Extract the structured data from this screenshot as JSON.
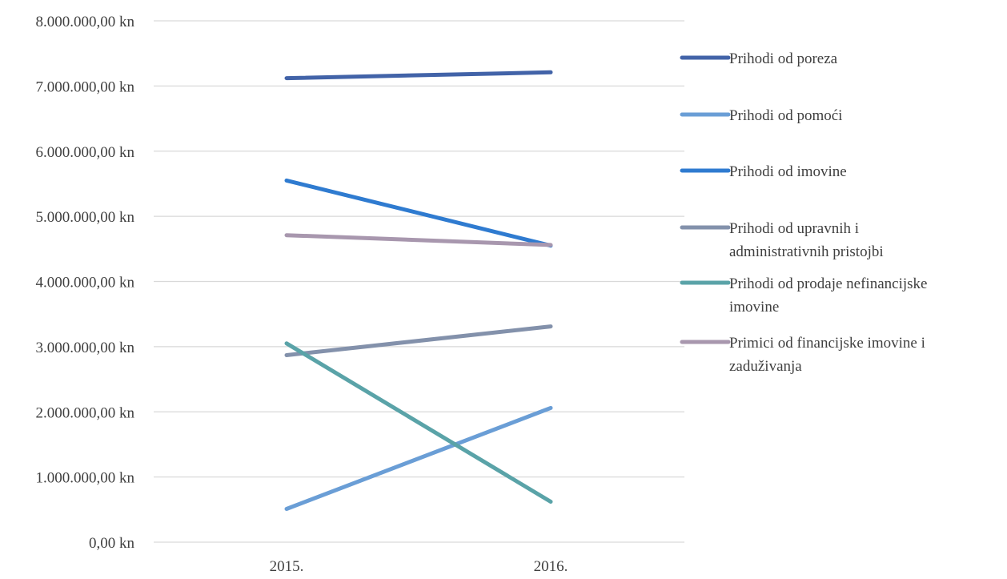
{
  "chart_data": {
    "type": "line",
    "title": "",
    "xlabel": "",
    "ylabel": "",
    "categories": [
      "2015.",
      "2016."
    ],
    "ylim": [
      0,
      8000000
    ],
    "y_ticks": [
      0,
      1000000,
      2000000,
      3000000,
      4000000,
      5000000,
      6000000,
      7000000,
      8000000
    ],
    "y_tick_labels": [
      "0,00 kn",
      "1.000.000,00 kn",
      "2.000.000,00 kn",
      "3.000.000,00 kn",
      "4.000.000,00 kn",
      "5.000.000,00 kn",
      "6.000.000,00 kn",
      "7.000.000,00 kn",
      "8.000.000,00 kn"
    ],
    "grid": true,
    "legend_position": "right",
    "series": [
      {
        "name": "Prihodi od poreza",
        "legend_lines": [
          "Prihodi od poreza"
        ],
        "color": "#4263a8",
        "values": [
          7120000,
          7210000
        ]
      },
      {
        "name": "Prihodi od pomoći",
        "legend_lines": [
          "Prihodi od pomoći"
        ],
        "color": "#6a9ed6",
        "values": [
          510000,
          2060000
        ]
      },
      {
        "name": "Prihodi od imovine",
        "legend_lines": [
          "Prihodi od imovine"
        ],
        "color": "#2f7bd0",
        "values": [
          5550000,
          4550000
        ]
      },
      {
        "name": "Prihodi od upravnih i administrativnih pristojbi",
        "legend_lines": [
          "Prihodi od upravnih i",
          "administrativnih pristojbi"
        ],
        "color": "#8391ab",
        "values": [
          2870000,
          3310000
        ]
      },
      {
        "name": "Prihodi od prodaje nefinancijske imovine",
        "legend_lines": [
          "Prihodi od prodaje nefinancijske",
          "imovine"
        ],
        "color": "#5aa3a8",
        "values": [
          3050000,
          620000
        ]
      },
      {
        "name": "Primici od financijske imovine i zaduživanja",
        "legend_lines": [
          "Primici od financijske imovine i",
          "zaduživanja"
        ],
        "color": "#a897ae",
        "values": [
          4710000,
          4560000
        ]
      }
    ]
  }
}
